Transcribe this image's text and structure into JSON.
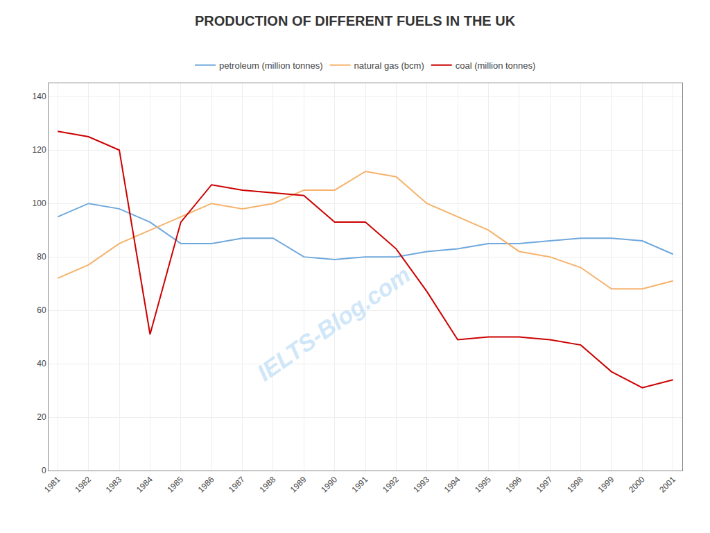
{
  "chart_data": {
    "type": "line",
    "title": "PRODUCTION OF DIFFERENT FUELS IN THE UK",
    "x": [
      1981,
      1982,
      1983,
      1984,
      1985,
      1986,
      1987,
      1988,
      1989,
      1990,
      1991,
      1992,
      1993,
      1994,
      1995,
      1996,
      1997,
      1998,
      1999,
      2000,
      2001
    ],
    "series": [
      {
        "name": "petroleum (million tonnes)",
        "color": "#6fa8dc",
        "values": [
          95,
          100,
          98,
          93,
          85,
          85,
          87,
          87,
          80,
          79,
          80,
          80,
          82,
          83,
          85,
          85,
          86,
          87,
          87,
          86,
          81
        ]
      },
      {
        "name": "natural gas (bcm)",
        "color": "#f6b26b",
        "values": [
          72,
          77,
          85,
          90,
          95,
          100,
          98,
          100,
          105,
          105,
          112,
          110,
          100,
          95,
          90,
          82,
          80,
          76,
          68,
          68,
          71
        ]
      },
      {
        "name": "coal (million tonnes)",
        "color": "#cc0000",
        "values": [
          127,
          125,
          120,
          51,
          93,
          107,
          105,
          104,
          103,
          93,
          93,
          83,
          67,
          49,
          50,
          50,
          49,
          47,
          37,
          31,
          34
        ]
      }
    ],
    "xlim": [
      1980.7,
      2001.3
    ],
    "xticks": [
      1981,
      1982,
      1983,
      1984,
      1985,
      1986,
      1987,
      1988,
      1989,
      1990,
      1991,
      1992,
      1993,
      1994,
      1995,
      1996,
      1997,
      1998,
      1999,
      2000,
      2001
    ],
    "ylim": [
      0,
      145
    ],
    "yticks": [
      0,
      20,
      40,
      60,
      80,
      100,
      120,
      140
    ],
    "grid": true,
    "legend": "top",
    "annotations": [
      "IELTS-Blog.com"
    ]
  }
}
